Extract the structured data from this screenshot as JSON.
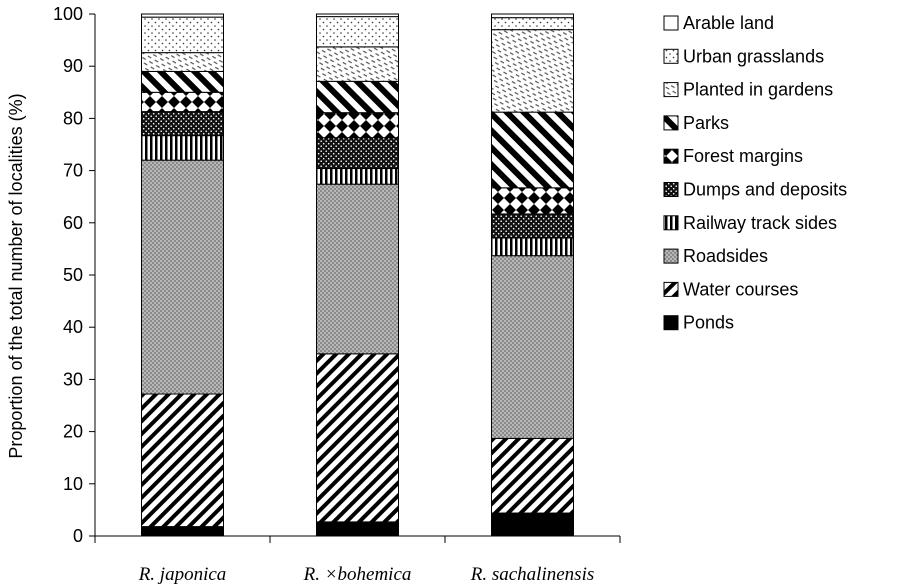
{
  "chart_data": {
    "type": "bar",
    "stacked": true,
    "orientation": "vertical",
    "categories": [
      "R. japonica",
      "R. ×bohemica",
      "R. sachalinensis"
    ],
    "ylabel": "Proportion of the total number of localities (%)",
    "xlabel": "",
    "ylim": [
      0,
      100
    ],
    "yticks": [
      0,
      10,
      20,
      30,
      40,
      50,
      60,
      70,
      80,
      90,
      100
    ],
    "grid": false,
    "legend_position": "right",
    "series": [
      {
        "name": "Ponds",
        "pattern": "solid-black",
        "values": [
          1.8,
          2.7,
          4.4
        ]
      },
      {
        "name": "Water courses",
        "pattern": "diagonal-hatch",
        "values": [
          25.4,
          32.2,
          14.3
        ]
      },
      {
        "name": "Roadsides",
        "pattern": "fine-gray-dots",
        "values": [
          44.8,
          32.5,
          35.0
        ]
      },
      {
        "name": "Railway track sides",
        "pattern": "vertical-stripes",
        "values": [
          4.7,
          3.0,
          3.4
        ]
      },
      {
        "name": "Dumps and deposits",
        "pattern": "dense-black-dots",
        "values": [
          4.6,
          5.9,
          4.6
        ]
      },
      {
        "name": "Forest margins",
        "pattern": "diamond-checks",
        "values": [
          3.7,
          4.8,
          5.0
        ]
      },
      {
        "name": "Parks",
        "pattern": "wide-diagonal",
        "values": [
          4.0,
          6.0,
          14.5
        ]
      },
      {
        "name": "Planted in gardens",
        "pattern": "light-diagonal-dashes",
        "values": [
          3.6,
          6.6,
          15.8
        ]
      },
      {
        "name": "Urban grasslands",
        "pattern": "sparse-dots",
        "values": [
          6.8,
          5.8,
          2.3
        ]
      },
      {
        "name": "Arable land",
        "pattern": "white",
        "values": [
          0.6,
          0.5,
          0.7
        ]
      }
    ]
  }
}
